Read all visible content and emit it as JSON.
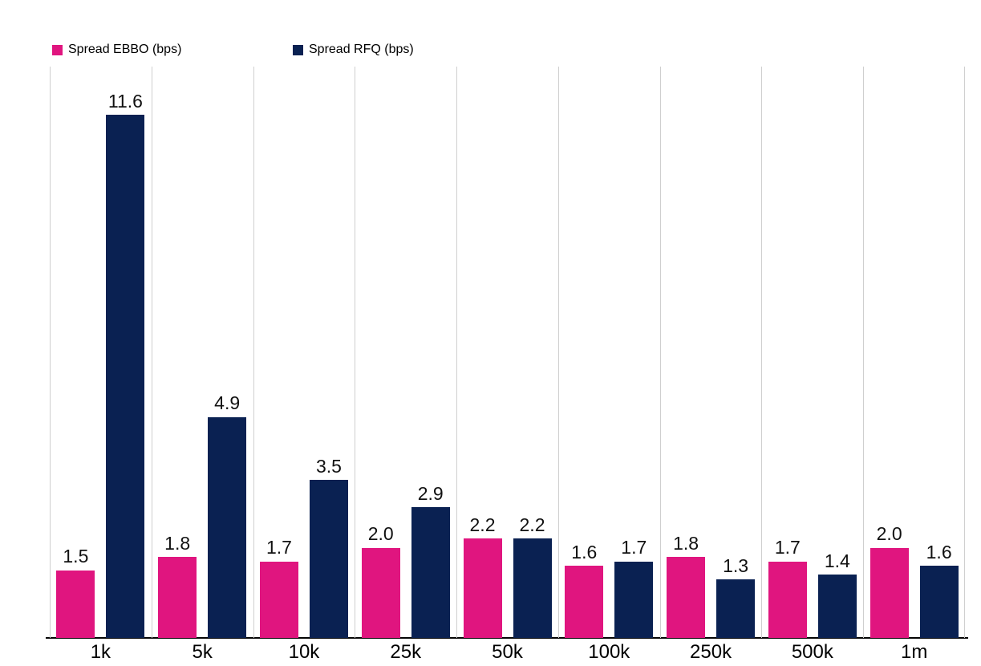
{
  "legend": {
    "items": [
      {
        "label": "Spread EBBO (bps)",
        "color": "#e0157f"
      },
      {
        "label": "Spread RFQ (bps)",
        "color": "#0a2152"
      }
    ]
  },
  "x_axis": {
    "tick_labels": [
      "1k",
      "5k",
      "10k",
      "25k",
      "50k",
      "100k",
      "250k",
      "500k",
      "1m"
    ]
  },
  "chart_data": {
    "type": "bar",
    "title": "",
    "categories": [
      "1k",
      "5k",
      "10k",
      "25k",
      "50k",
      "100k",
      "250k",
      "500k",
      "1m"
    ],
    "series": [
      {
        "name": "Spread EBBO (bps)",
        "color": "#e0157f",
        "values": [
          1.5,
          1.8,
          1.7,
          2.0,
          2.2,
          1.6,
          1.8,
          1.7,
          2.0
        ]
      },
      {
        "name": "Spread RFQ (bps)",
        "color": "#0a2152",
        "values": [
          11.6,
          4.9,
          3.5,
          2.9,
          2.2,
          1.7,
          1.3,
          1.4,
          1.6
        ]
      }
    ],
    "xlabel": "",
    "ylabel": "",
    "ylim": [
      0,
      12.67
    ],
    "grid": "vertical gridlines only",
    "gridline_color": "#cfcfcf",
    "axis_line_color": "#050505",
    "legend_position": "top-left",
    "data_labels": "value with one decimal above each bar",
    "label_color": "#111111"
  }
}
